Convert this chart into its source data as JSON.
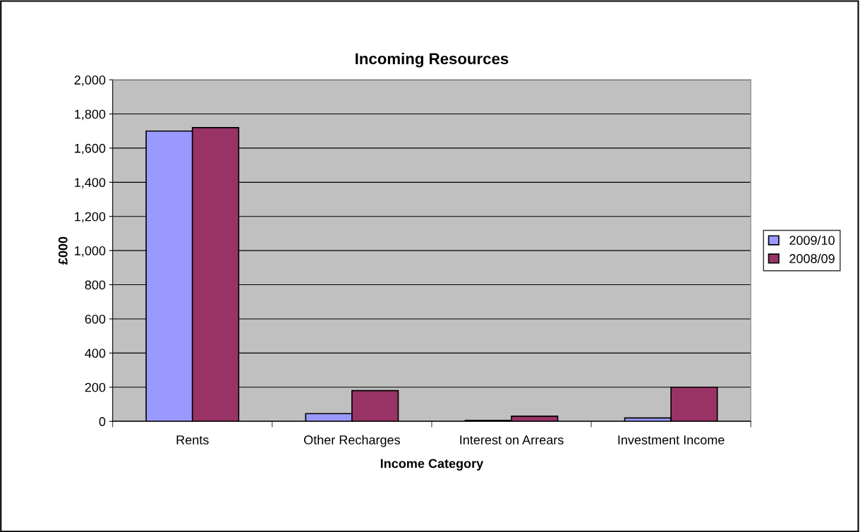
{
  "chart_data": {
    "type": "bar",
    "title": "Incoming Resources",
    "xlabel": "Income Category",
    "ylabel": "£000",
    "categories": [
      "Rents",
      "Other Recharges",
      "Interest on Arrears",
      "Investment Income"
    ],
    "series": [
      {
        "name": "2009/10",
        "color": "#9999ff",
        "values": [
          1700,
          45,
          5,
          20
        ]
      },
      {
        "name": "2008/09",
        "color": "#993366",
        "values": [
          1720,
          180,
          30,
          200
        ]
      }
    ],
    "ylim": [
      0,
      2000
    ],
    "yticks": [
      {
        "value": 0,
        "label": "0"
      },
      {
        "value": 200,
        "label": "200"
      },
      {
        "value": 400,
        "label": "400"
      },
      {
        "value": 600,
        "label": "600"
      },
      {
        "value": 800,
        "label": "800"
      },
      {
        "value": 1000,
        "label": "1,000"
      },
      {
        "value": 1200,
        "label": "1,200"
      },
      {
        "value": 1400,
        "label": "1,400"
      },
      {
        "value": 1600,
        "label": "1,600"
      },
      {
        "value": 1800,
        "label": "1,800"
      },
      {
        "value": 2000,
        "label": "2,000"
      }
    ],
    "grid": "y",
    "legend": "right"
  }
}
